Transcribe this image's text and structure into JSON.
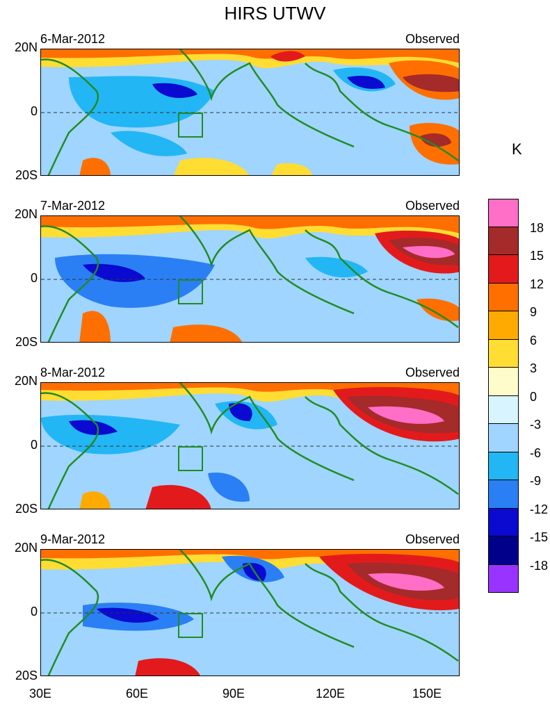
{
  "title": "HIRS UTWV",
  "unit": "K",
  "panels": [
    {
      "date": "6-Mar-2012",
      "tag": "Observed"
    },
    {
      "date": "7-Mar-2012",
      "tag": "Observed"
    },
    {
      "date": "8-Mar-2012",
      "tag": "Observed"
    },
    {
      "date": "9-Mar-2012",
      "tag": "Observed"
    }
  ],
  "lat_labels": [
    "20N",
    "0",
    "20S"
  ],
  "lon_labels": [
    "30E",
    "60E",
    "90E",
    "120E",
    "150E"
  ],
  "colorbar": {
    "labels": [
      "18",
      "15",
      "12",
      "9",
      "6",
      "3",
      "0",
      "-3",
      "-6",
      "-9",
      "-12",
      "-15",
      "-18"
    ],
    "colors": [
      "#ff6ec7",
      "#a52a2a",
      "#e31a1c",
      "#ff6f00",
      "#ffaa00",
      "#ffdd33",
      "#fffccc",
      "#d8f4ff",
      "#9fd5ff",
      "#23b6f5",
      "#2a7ff5",
      "#0a0ad0",
      "#00008b",
      "#9933ff"
    ]
  },
  "colors": {
    "coast": "#228b22",
    "border": "#006400"
  }
}
